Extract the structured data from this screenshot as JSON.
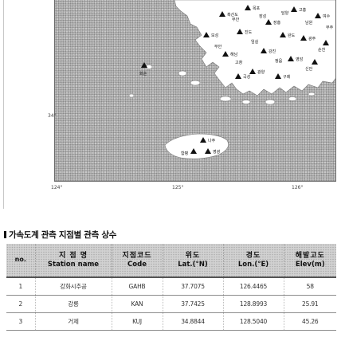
{
  "map": {
    "latitude_label": "34°",
    "longitude_labels": [
      "124°",
      "125°",
      "126°"
    ],
    "station_labels": [
      "흑산도",
      "목포",
      "장흥",
      "고흥",
      "여수",
      "진도",
      "완도",
      "광주",
      "순천",
      "해남",
      "강진",
      "영암",
      "신안",
      "보성",
      "광양",
      "구례",
      "곡성",
      "화순",
      "나주",
      "함평",
      "영광",
      "무안",
      "장성",
      "담양",
      "남원",
      "무주",
      "임실",
      "고창",
      "정읍",
      "부안"
    ]
  },
  "section": {
    "title": "가속도계 관측 지점별 관측 상수"
  },
  "table": {
    "headers": [
      {
        "ko": "no.",
        "en": ""
      },
      {
        "ko": "지 점 명",
        "en": "Station name"
      },
      {
        "ko": "지점코드",
        "en": "Code"
      },
      {
        "ko": "위도",
        "en": "Lat.(°N)"
      },
      {
        "ko": "경도",
        "en": "Lon.(°E)"
      },
      {
        "ko": "해발고도",
        "en": "Elev(m)"
      }
    ],
    "rows": [
      [
        "1",
        "강화시추공",
        "GAHB",
        "37.7075",
        "126.4465",
        "58"
      ],
      [
        "2",
        "강릉",
        "KAN",
        "37.7425",
        "128.8993",
        "25.91"
      ],
      [
        "3",
        "거제",
        "KUJ",
        "34.8844",
        "128.5040",
        "45.26"
      ]
    ]
  }
}
